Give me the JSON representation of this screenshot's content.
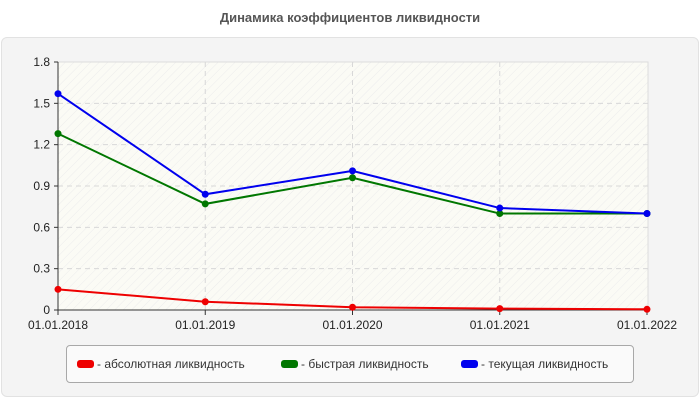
{
  "title": "Динамика коэффициентов ликвидности",
  "chart_data": {
    "type": "line",
    "title": "Динамика коэффициентов ликвидности",
    "xlabel": "",
    "ylabel": "",
    "categories": [
      "01.01.2018",
      "01.01.2019",
      "01.01.2020",
      "01.01.2021",
      "01.01.2022"
    ],
    "ylim": [
      0,
      1.8
    ],
    "yticks": [
      "0",
      "0.3",
      "0.6",
      "0.9",
      "1.2",
      "1.5",
      "1.8"
    ],
    "grid": true,
    "legend_position": "bottom",
    "series": [
      {
        "name": "- абсолютная ликвидность",
        "color": "#ee0000",
        "values": [
          0.15,
          0.06,
          0.02,
          0.01,
          0.005
        ]
      },
      {
        "name": "- быстрая ликвидность",
        "color": "#007700",
        "values": [
          1.28,
          0.77,
          0.96,
          0.7,
          0.7
        ]
      },
      {
        "name": "- текущая ликвидность",
        "color": "#0000ee",
        "values": [
          1.57,
          0.84,
          1.01,
          0.74,
          0.7
        ]
      }
    ]
  },
  "legend": [
    {
      "label": "- абсолютная ликвидность",
      "color": "#ee0000"
    },
    {
      "label": "- быстрая ликвидность",
      "color": "#007700"
    },
    {
      "label": "- текущая ликвидность",
      "color": "#0000ee"
    }
  ]
}
